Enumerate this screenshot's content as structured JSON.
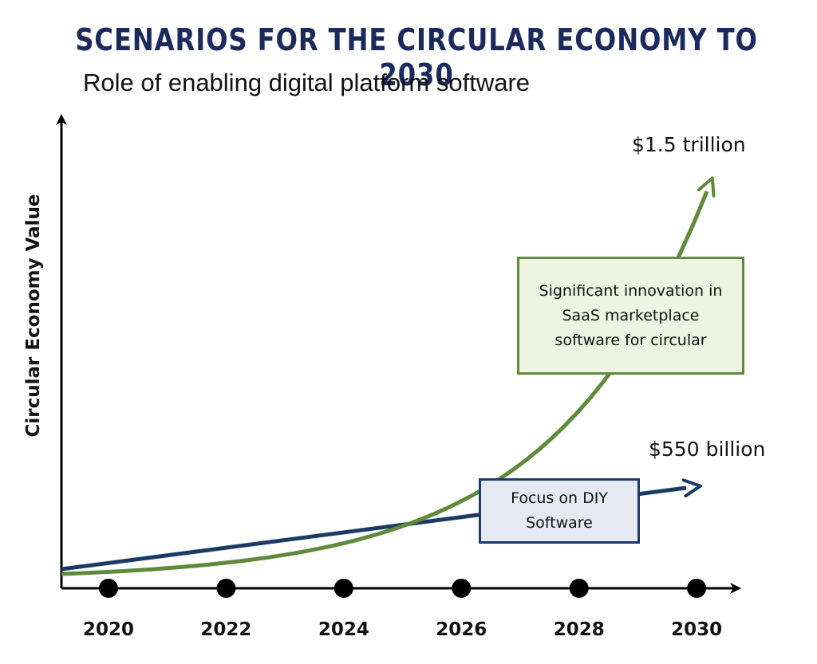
{
  "chart_data": {
    "type": "line",
    "title": "SCENARIOS FOR THE CIRCULAR ECONOMY TO 2030",
    "subtitle": "Role of enabling digital platform software",
    "ylabel": "Circular Economy Value",
    "xlabel": "",
    "x": [
      2020,
      2022,
      2024,
      2026,
      2028,
      2030
    ],
    "xlim": [
      2019.2,
      2030.5
    ],
    "series": [
      {
        "name": "",
        "color": "#5e8a3a",
        "annotation": "Significant innovation in SaaS marketplace software for circular",
        "end_label": "$1.5 trillion",
        "shape": "exponential"
      },
      {
        "name": "",
        "color": "#1b3a66",
        "annotation": "Focus on DIY Software",
        "end_label": "$550 billion",
        "shape": "linear"
      }
    ],
    "grid": false,
    "legend": "none"
  }
}
